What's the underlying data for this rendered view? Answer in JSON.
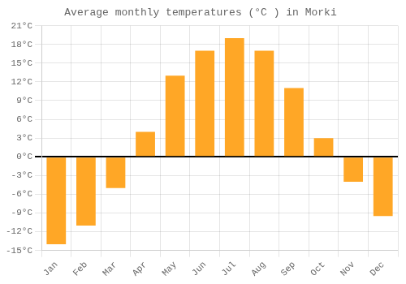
{
  "chart_data": {
    "type": "bar",
    "title": "Average monthly temperatures (°C ) in Morki",
    "categories": [
      "Jan",
      "Feb",
      "Mar",
      "Apr",
      "May",
      "Jun",
      "Jul",
      "Aug",
      "Sep",
      "Oct",
      "Nov",
      "Dec"
    ],
    "values": [
      -14,
      -11,
      -5,
      4,
      13,
      17,
      19,
      17,
      11,
      3,
      -4,
      -9.5
    ],
    "color": "#FFA726",
    "ylim": [
      -15,
      21
    ],
    "yticks": [
      {
        "value": -15,
        "label": "-15°C"
      },
      {
        "value": -12,
        "label": "-12°C"
      },
      {
        "value": -9,
        "label": "-9°C"
      },
      {
        "value": -6,
        "label": "-6°C"
      },
      {
        "value": -3,
        "label": "-3°C"
      },
      {
        "value": 0,
        "label": "0°C"
      },
      {
        "value": 3,
        "label": "3°C"
      },
      {
        "value": 6,
        "label": "6°C"
      },
      {
        "value": 9,
        "label": "9°C"
      },
      {
        "value": 12,
        "label": "12°C"
      },
      {
        "value": 15,
        "label": "15°C"
      },
      {
        "value": 18,
        "label": "18°C"
      },
      {
        "value": 21,
        "label": "21°C"
      }
    ],
    "grid": true
  }
}
